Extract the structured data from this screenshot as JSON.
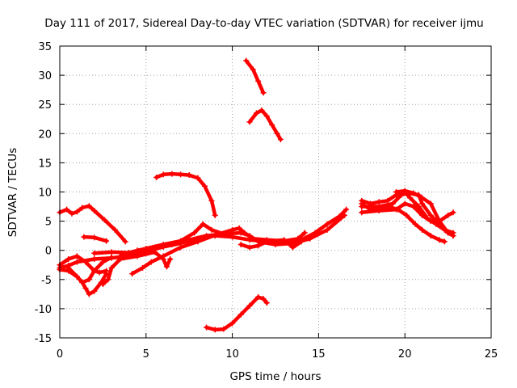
{
  "chart_data": {
    "type": "line",
    "title": "Day 111 of 2017, Sidereal Day-to-day VTEC variation (SDTVAR) for receiver ijmu",
    "xlabel": "GPS time / hours",
    "ylabel": "SDTVAR / TECUs",
    "xlim": [
      0,
      25
    ],
    "ylim": [
      -15,
      35
    ],
    "xticks": [
      0,
      5,
      10,
      15,
      20,
      25
    ],
    "yticks": [
      -15,
      -10,
      -5,
      0,
      5,
      10,
      15,
      20,
      25,
      30,
      35
    ],
    "grid": true,
    "series_color": "#ff0000",
    "series": [
      {
        "name": "trace-1",
        "points": [
          [
            0,
            6.5
          ],
          [
            0.4,
            7
          ],
          [
            0.7,
            6.3
          ],
          [
            1.0,
            6.6
          ],
          [
            1.3,
            7.3
          ],
          [
            1.7,
            7.6
          ],
          [
            2.0,
            6.8
          ],
          [
            2.6,
            5.2
          ],
          [
            3.2,
            3.5
          ],
          [
            3.8,
            1.5
          ]
        ]
      },
      {
        "name": "trace-2",
        "points": [
          [
            1.4,
            2.3
          ],
          [
            2.0,
            2.2
          ],
          [
            2.7,
            1.6
          ]
        ]
      },
      {
        "name": "trace-3",
        "points": [
          [
            5.6,
            12.5
          ],
          [
            6.0,
            13.0
          ],
          [
            6.5,
            13.1
          ],
          [
            7.0,
            13.0
          ],
          [
            7.5,
            12.9
          ],
          [
            8.0,
            12.4
          ],
          [
            8.4,
            11.0
          ],
          [
            8.8,
            8.5
          ],
          [
            9.0,
            6.0
          ]
        ]
      },
      {
        "name": "trace-4",
        "points": [
          [
            10.8,
            32.5
          ],
          [
            11.2,
            31.0
          ],
          [
            11.5,
            29.0
          ],
          [
            11.8,
            27.0
          ]
        ]
      },
      {
        "name": "trace-5",
        "points": [
          [
            11.0,
            22.0
          ],
          [
            11.4,
            23.5
          ],
          [
            11.7,
            24.0
          ],
          [
            12.0,
            23.0
          ],
          [
            12.3,
            21.5
          ],
          [
            12.6,
            20.0
          ],
          [
            12.8,
            19.0
          ]
        ]
      },
      {
        "name": "trace-6",
        "points": [
          [
            8.5,
            -13.2
          ],
          [
            9.0,
            -13.6
          ],
          [
            9.5,
            -13.5
          ],
          [
            10.0,
            -12.5
          ],
          [
            10.5,
            -11.0
          ],
          [
            11.0,
            -9.5
          ],
          [
            11.5,
            -8.0
          ],
          [
            11.8,
            -8.3
          ],
          [
            12.0,
            -9.0
          ]
        ]
      },
      {
        "name": "trace-7",
        "points": [
          [
            0,
            -3
          ],
          [
            0.5,
            -2.6
          ],
          [
            1.0,
            -2.0
          ],
          [
            2.0,
            -1.5
          ],
          [
            3.0,
            -1.3
          ],
          [
            4.0,
            -1.0
          ],
          [
            5.0,
            -0.2
          ],
          [
            6.0,
            0.6
          ],
          [
            7.0,
            1.2
          ],
          [
            8.0,
            2.0
          ],
          [
            9.0,
            2.5
          ],
          [
            10.0,
            2.3
          ],
          [
            11.0,
            1.8
          ],
          [
            12.0,
            1.5
          ],
          [
            13.0,
            1.4
          ],
          [
            14.0,
            1.8
          ],
          [
            14.8,
            3.0
          ],
          [
            15.5,
            4.5
          ],
          [
            16.2,
            5.8
          ],
          [
            16.6,
            7.0
          ]
        ]
      },
      {
        "name": "trace-8",
        "points": [
          [
            0,
            -3.3
          ],
          [
            0.5,
            -3.5
          ],
          [
            1.0,
            -4.5
          ],
          [
            1.3,
            -5.5
          ],
          [
            1.5,
            -6.5
          ],
          [
            1.7,
            -7.5
          ],
          [
            2.0,
            -7.0
          ],
          [
            2.4,
            -5.5
          ],
          [
            2.7,
            -4.0
          ]
        ]
      },
      {
        "name": "trace-9",
        "points": [
          [
            0,
            -2.5
          ],
          [
            0.5,
            -1.5
          ],
          [
            1.0,
            -1.0
          ],
          [
            1.5,
            -2.0
          ],
          [
            2.0,
            -3.5
          ],
          [
            2.3,
            -3.8
          ],
          [
            2.7,
            -3.5
          ]
        ]
      },
      {
        "name": "trace-10",
        "points": [
          [
            0.5,
            -3.0
          ],
          [
            1.0,
            -4.5
          ],
          [
            1.3,
            -5.5
          ],
          [
            1.7,
            -5.0
          ],
          [
            2.0,
            -3.5
          ],
          [
            2.5,
            -2.0
          ],
          [
            3.0,
            -1.2
          ]
        ]
      },
      {
        "name": "trace-11",
        "points": [
          [
            2.5,
            -5.8
          ],
          [
            2.8,
            -5.0
          ],
          [
            3.0,
            -3.0
          ],
          [
            3.5,
            -1.5
          ],
          [
            4.5,
            -1.0
          ],
          [
            5.5,
            -0.3
          ],
          [
            6.0,
            -1.5
          ],
          [
            6.2,
            -2.8
          ],
          [
            6.4,
            -1.5
          ]
        ]
      },
      {
        "name": "trace-12",
        "points": [
          [
            2.0,
            -0.5
          ],
          [
            3.0,
            -0.3
          ],
          [
            4.0,
            -0.4
          ],
          [
            5.0,
            0.3
          ],
          [
            6.0,
            1.0
          ],
          [
            7.0,
            1.6
          ],
          [
            7.8,
            3.0
          ],
          [
            8.3,
            4.5
          ],
          [
            8.8,
            3.5
          ],
          [
            9.5,
            2.8
          ]
        ]
      },
      {
        "name": "trace-13",
        "points": [
          [
            4.2,
            -4.0
          ],
          [
            4.8,
            -3.0
          ],
          [
            5.3,
            -2.0
          ],
          [
            6.0,
            -1.0
          ],
          [
            7.0,
            0.5
          ],
          [
            8.0,
            1.5
          ],
          [
            9.0,
            2.6
          ],
          [
            10.0,
            3.5
          ],
          [
            10.4,
            3.8
          ],
          [
            10.7,
            3.0
          ],
          [
            11.2,
            2.0
          ],
          [
            12.0,
            1.8
          ],
          [
            13.0,
            1.6
          ],
          [
            13.8,
            2.0
          ],
          [
            14.2,
            3.0
          ]
        ]
      },
      {
        "name": "trace-14",
        "points": [
          [
            3.5,
            -1.0
          ],
          [
            4.5,
            0.0
          ],
          [
            5.5,
            0.5
          ],
          [
            6.5,
            1.0
          ],
          [
            7.5,
            1.8
          ],
          [
            8.5,
            2.5
          ],
          [
            9.5,
            2.8
          ],
          [
            10.5,
            3.0
          ],
          [
            11.0,
            2.5
          ],
          [
            11.5,
            1.5
          ],
          [
            12.5,
            1.0
          ],
          [
            13.5,
            1.2
          ],
          [
            14.5,
            2.0
          ],
          [
            15.5,
            3.5
          ],
          [
            16.5,
            6.0
          ]
        ]
      },
      {
        "name": "trace-15",
        "points": [
          [
            10.5,
            1.0
          ],
          [
            11.0,
            0.5
          ],
          [
            11.5,
            0.8
          ],
          [
            12.0,
            1.5
          ],
          [
            13.0,
            1.8
          ],
          [
            13.5,
            0.5
          ],
          [
            14.0,
            1.5
          ]
        ]
      },
      {
        "name": "trace-16",
        "points": [
          [
            17.5,
            8.5
          ],
          [
            18.0,
            8.0
          ],
          [
            18.5,
            8.3
          ],
          [
            19.0,
            8.5
          ],
          [
            19.5,
            9.5
          ],
          [
            20.0,
            10.0
          ],
          [
            20.3,
            9.0
          ],
          [
            20.8,
            7.5
          ],
          [
            21.3,
            5.5
          ],
          [
            21.8,
            4.5
          ],
          [
            22.3,
            3.5
          ],
          [
            22.8,
            3.0
          ]
        ]
      },
      {
        "name": "trace-17",
        "points": [
          [
            17.5,
            6.5
          ],
          [
            18.5,
            6.8
          ],
          [
            19.5,
            7.0
          ],
          [
            20.0,
            8.0
          ],
          [
            20.5,
            7.5
          ],
          [
            21.0,
            6.0
          ],
          [
            21.5,
            5.0
          ],
          [
            22.0,
            5.0
          ],
          [
            22.5,
            6.0
          ],
          [
            22.8,
            6.5
          ]
        ]
      },
      {
        "name": "trace-18",
        "points": [
          [
            17.5,
            7.5
          ],
          [
            18.5,
            7.5
          ],
          [
            19.3,
            8.0
          ],
          [
            19.8,
            9.5
          ],
          [
            20.2,
            9.8
          ],
          [
            20.8,
            9.5
          ],
          [
            21.0,
            8.0
          ],
          [
            21.5,
            6.0
          ],
          [
            22.0,
            4.5
          ],
          [
            22.5,
            3.0
          ],
          [
            22.8,
            2.5
          ]
        ]
      },
      {
        "name": "trace-19",
        "points": [
          [
            17.5,
            8.0
          ],
          [
            18.0,
            7.0
          ],
          [
            19.0,
            7.5
          ],
          [
            19.6,
            7.0
          ],
          [
            20.1,
            6.0
          ],
          [
            20.6,
            4.5
          ],
          [
            21.0,
            3.5
          ],
          [
            21.5,
            2.5
          ],
          [
            22.0,
            1.8
          ],
          [
            22.3,
            1.5
          ]
        ]
      },
      {
        "name": "trace-20",
        "points": [
          [
            19.5,
            10.0
          ],
          [
            20.0,
            10.2
          ],
          [
            20.5,
            9.8
          ],
          [
            21.0,
            9.0
          ],
          [
            21.5,
            8.0
          ],
          [
            22.0,
            5.0
          ],
          [
            22.5,
            3.0
          ],
          [
            22.8,
            2.5
          ]
        ]
      }
    ]
  }
}
